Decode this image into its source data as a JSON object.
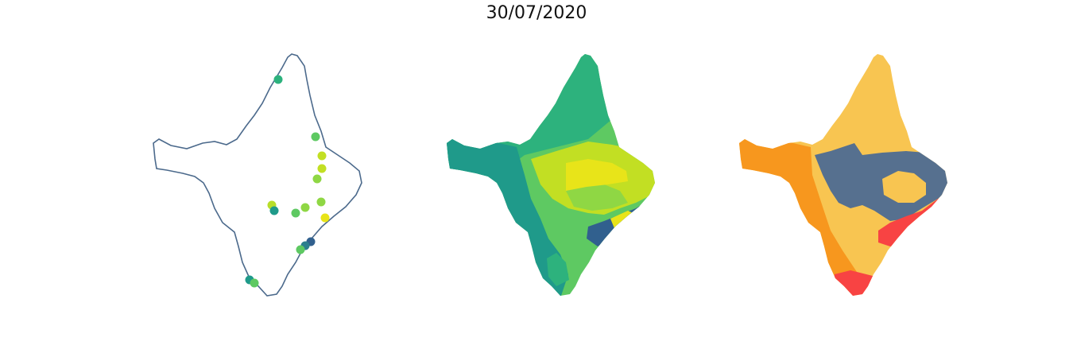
{
  "figure": {
    "title": "30/07/2020"
  },
  "colors": {
    "outline": "#4c6a8c",
    "viridis_dark_blue": "#31608e",
    "viridis_teal": "#1f9a8a",
    "viridis_green": "#2db27d",
    "viridis_light_green": "#5ec962",
    "viridis_lime": "#8fd744",
    "viridis_yellow_green": "#c2df23",
    "viridis_yellow": "#e8e419",
    "cat_orange": "#f7971e",
    "cat_light_orange": "#f8c551",
    "cat_slate": "#56708f",
    "cat_red": "#f84343"
  },
  "panels": [
    {
      "name": "stations",
      "type": "point-map"
    },
    {
      "name": "interpolated",
      "type": "choropleth"
    },
    {
      "name": "classified",
      "type": "choropleth"
    }
  ],
  "stations": [
    {
      "color": "#2db27d"
    },
    {
      "color": "#5ec962"
    },
    {
      "color": "#c2df23"
    },
    {
      "color": "#c2df23"
    },
    {
      "color": "#8fd744"
    },
    {
      "color": "#b8de29"
    },
    {
      "color": "#1f9a8a"
    },
    {
      "color": "#5ec962"
    },
    {
      "color": "#8fd744"
    },
    {
      "color": "#8fd744"
    },
    {
      "color": "#e8e419"
    },
    {
      "color": "#31608e"
    },
    {
      "color": "#2c7f8e"
    },
    {
      "color": "#5ec962"
    },
    {
      "color": "#1f9a8a"
    },
    {
      "color": "#5ec962"
    }
  ]
}
